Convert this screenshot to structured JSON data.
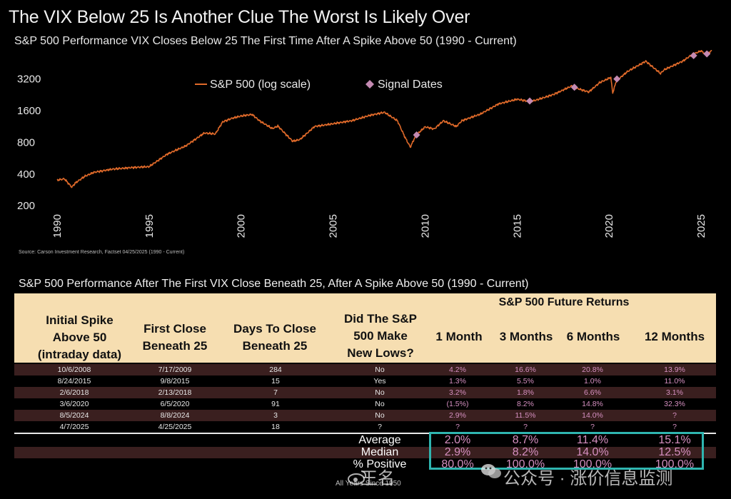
{
  "title": "The VIX Below 25 Is Another Clue The Worst Is Likely Over",
  "subtitle": "S&P 500 Performance VIX Closes Below 25 The First Time After A Spike Above 50 (1990 - Current)",
  "source": "Source: Carson Investment Research, Factset 04/25/2025 (1990 - Current)",
  "colors": {
    "line": "#e06a2a",
    "marker": "#c48ab2",
    "header_bg": "#f6deb1",
    "row_shade": "#3a1f1f",
    "return_text": "#d58fc0",
    "highlight": "#2fb5b0"
  },
  "chart_data": {
    "type": "line",
    "title": "",
    "xlabel": "",
    "ylabel": "",
    "y_scale": "log",
    "ylim": [
      180,
      6200
    ],
    "xlim": [
      1990,
      2025.7
    ],
    "x_ticks": [
      1990,
      1995,
      2000,
      2005,
      2010,
      2015,
      2020,
      2025
    ],
    "y_ticks": [
      200,
      400,
      800,
      1600,
      3200
    ],
    "legend": {
      "placement": "top-left",
      "entries": [
        "S&P 500 (log scale)",
        "Signal Dates"
      ]
    },
    "grid": false,
    "series": [
      {
        "name": "S&P 500 (log scale)",
        "x": [
          1990.0,
          1990.4,
          1990.8,
          1991.0,
          1991.5,
          1992.0,
          1993.0,
          1994.0,
          1995.0,
          1996.0,
          1997.0,
          1998.0,
          1998.6,
          1999.0,
          1999.5,
          2000.0,
          2000.6,
          2001.0,
          2001.7,
          2002.0,
          2002.8,
          2003.2,
          2004.0,
          2005.0,
          2006.0,
          2007.0,
          2007.8,
          2008.5,
          2008.9,
          2009.2,
          2009.5,
          2010.0,
          2010.5,
          2011.0,
          2011.7,
          2012.0,
          2013.0,
          2014.0,
          2015.0,
          2015.7,
          2016.0,
          2017.0,
          2018.0,
          2018.1,
          2018.9,
          2019.5,
          2020.1,
          2020.2,
          2020.4,
          2021.0,
          2022.0,
          2022.8,
          2023.0,
          2024.0,
          2024.5,
          2025.0,
          2025.3,
          2025.6
        ],
        "values": [
          350,
          360,
          300,
          330,
          380,
          415,
          445,
          460,
          470,
          620,
          740,
          980,
          960,
          1250,
          1350,
          1420,
          1470,
          1280,
          1080,
          1140,
          820,
          850,
          1130,
          1200,
          1280,
          1440,
          1540,
          1280,
          900,
          720,
          930,
          1120,
          1070,
          1280,
          1130,
          1280,
          1480,
          1850,
          2050,
          1950,
          2000,
          2280,
          2750,
          2650,
          2400,
          2950,
          3300,
          2350,
          3050,
          3750,
          4700,
          3600,
          3900,
          4700,
          5400,
          5900,
          5400,
          6000
        ]
      }
    ],
    "signal_dates": [
      {
        "label": "7/17/2009",
        "x": 2009.54,
        "y": 940
      },
      {
        "label": "9/8/2015",
        "x": 2015.69,
        "y": 1970
      },
      {
        "label": "2/13/2018",
        "x": 2018.12,
        "y": 2660
      },
      {
        "label": "6/5/2020",
        "x": 2020.43,
        "y": 3190
      },
      {
        "label": "8/8/2024",
        "x": 2024.6,
        "y": 5320
      },
      {
        "label": "4/25/2025",
        "x": 2025.32,
        "y": 5520
      }
    ]
  },
  "table": {
    "title": "S&P 500 Performance After The First VIX Close Beneath 25, After A Spike Above 50 (1990 - Current)",
    "super_header": "S&P 500 Future Returns",
    "headers": {
      "initial_l1": "Initial Spike",
      "initial_l2": "Above 50",
      "initial_l3": "(intraday data)",
      "first_l1": "First Close",
      "first_l2": "Beneath 25",
      "days_l1": "Days To Close",
      "days_l2": "Beneath 25",
      "lows_l1": "Did The S&P",
      "lows_l2": "500 Make",
      "lows_l3": "New Lows?",
      "m1": "1 Month",
      "m3": "3 Months",
      "m6": "6 Months",
      "m12": "12 Months"
    },
    "rows": [
      {
        "spike": "10/6/2008",
        "first": "7/17/2009",
        "days": "284",
        "lows": "No",
        "m1": "4.2%",
        "m3": "16.6%",
        "m6": "20.8%",
        "m12": "13.9%"
      },
      {
        "spike": "8/24/2015",
        "first": "9/8/2015",
        "days": "15",
        "lows": "Yes",
        "m1": "1.3%",
        "m3": "5.5%",
        "m6": "1.0%",
        "m12": "11.0%"
      },
      {
        "spike": "2/6/2018",
        "first": "2/13/2018",
        "days": "7",
        "lows": "No",
        "m1": "3.2%",
        "m3": "1.8%",
        "m6": "6.6%",
        "m12": "3.1%"
      },
      {
        "spike": "3/6/2020",
        "first": "6/5/2020",
        "days": "91",
        "lows": "No",
        "m1": "(1.5%)",
        "m3": "8.2%",
        "m6": "14.8%",
        "m12": "32.3%"
      },
      {
        "spike": "8/5/2024",
        "first": "8/8/2024",
        "days": "3",
        "lows": "No",
        "m1": "2.9%",
        "m3": "11.5%",
        "m6": "14.0%",
        "m12": "?"
      },
      {
        "spike": "4/7/2025",
        "first": "4/25/2025",
        "days": "18",
        "lows": "?",
        "m1": "?",
        "m3": "?",
        "m6": "?",
        "m12": "?"
      }
    ],
    "summary": [
      {
        "label": "Average",
        "m1": "2.0%",
        "m3": "8.7%",
        "m6": "11.4%",
        "m12": "15.1%"
      },
      {
        "label": "Median",
        "m1": "2.9%",
        "m3": "8.2%",
        "m6": "14.0%",
        "m12": "12.5%"
      },
      {
        "label": "% Positive",
        "m1": "80.0%",
        "m3": "100.0%",
        "m6": "100.0%",
        "m12": "100.0%"
      }
    ],
    "footer_note": "All Years Since 1950"
  },
  "watermark": {
    "left_text": "王名",
    "right_text": "公众号 · 涨价信息监测"
  }
}
